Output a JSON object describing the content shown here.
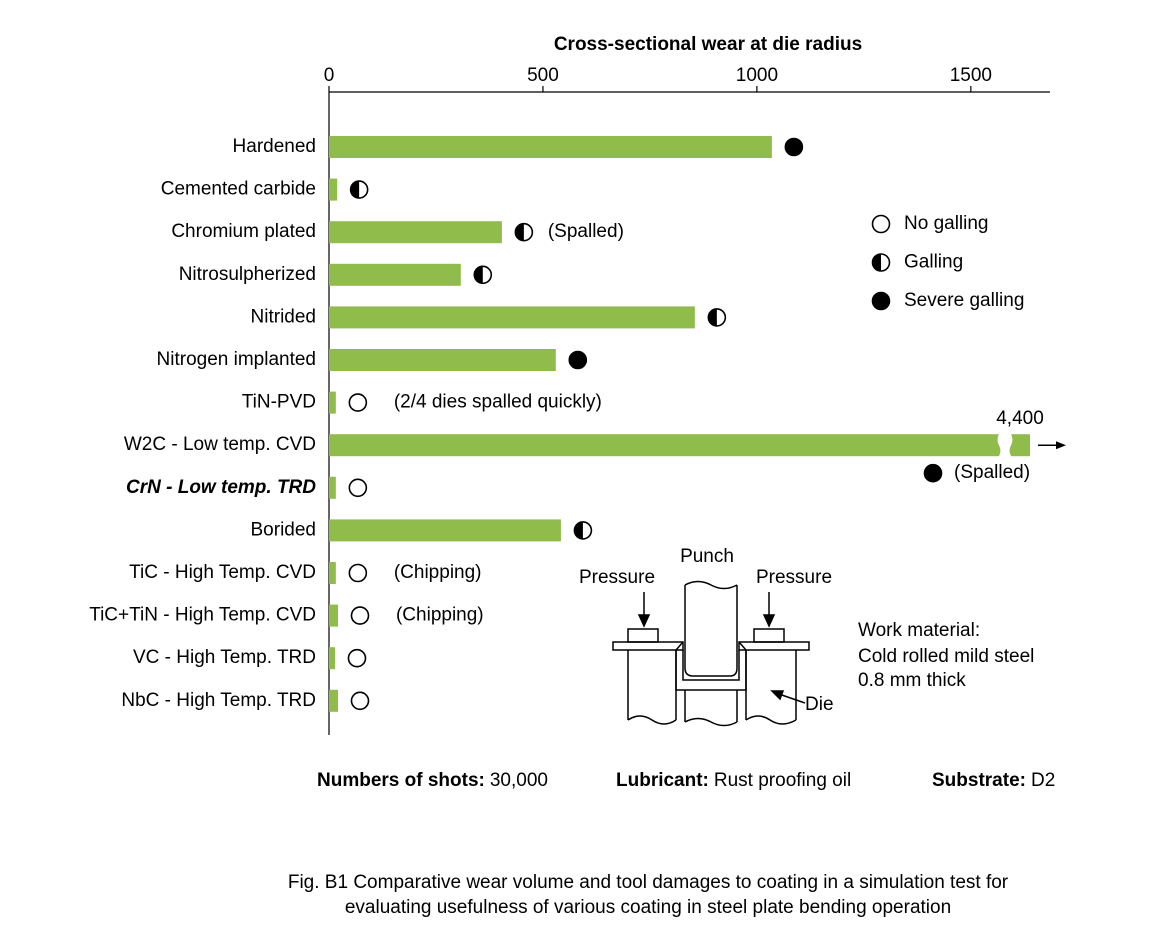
{
  "chart_data": {
    "type": "bar",
    "orientation": "horizontal",
    "x_axis_position": "top",
    "xlabel": "Cross-sectional wear at die radius",
    "xlim": [
      0,
      1685
    ],
    "xticks": [
      0,
      500,
      1000,
      {
        "value": 1500,
        "label": "1500"
      }
    ],
    "categories": [
      "Hardened",
      "Cemented carbide",
      "Chromium plated",
      "Nitrosulpherized",
      "Nitrided",
      "Nitrogen implanted",
      "TiN-PVD",
      "W2C - Low temp. CVD",
      "CrN - Low temp. TRD",
      "Borided",
      "TiC - High Temp. CVD",
      "TiC+TiN - High Temp. CVD",
      "VC - High Temp. TRD",
      "NbC - High Temp. TRD"
    ],
    "values": [
      1035,
      19,
      404,
      308,
      855,
      530,
      16,
      4400,
      16,
      542,
      16,
      21,
      14,
      21
    ],
    "value_labels": [
      null,
      null,
      null,
      null,
      null,
      null,
      null,
      "4,400",
      null,
      null,
      null,
      null,
      null,
      null
    ],
    "color": "#8fbc4a",
    "emphasized_category": "CrN - Low temp. TRD",
    "galling": [
      "Severe galling",
      "Galling",
      "Galling",
      "Galling",
      "Galling",
      "Severe galling",
      "No galling",
      "Severe galling",
      "No galling",
      "Galling",
      "No galling",
      "No galling",
      "No galling",
      "No galling"
    ],
    "notes": [
      null,
      null,
      "(Spalled)",
      null,
      null,
      null,
      "(2/4 dies spalled quickly)",
      "(Spalled)",
      null,
      null,
      "(Chipping)",
      "(Chipping)",
      null,
      null
    ],
    "legend": [
      "No galling",
      "Galling",
      "Severe galling"
    ],
    "conditions": [
      {
        "label": "Numbers of shots:",
        "value": "30,000"
      },
      {
        "label": "Lubricant:",
        "value": "Rust proofing oil"
      },
      {
        "label": "Substrate:",
        "value": "D2"
      }
    ],
    "inset": {
      "punch": "Punch",
      "pressure_left": "Pressure",
      "pressure_right": "Pressure",
      "die": "Die",
      "work_material": [
        "Work material:",
        "Cold rolled mild steel",
        "0.8 mm thick"
      ]
    },
    "caption": [
      "Fig. B1 Comparative wear volume and tool damages to coating in a simulation test for",
      "evaluating usefulness of various coating in steel plate bending operation"
    ]
  }
}
